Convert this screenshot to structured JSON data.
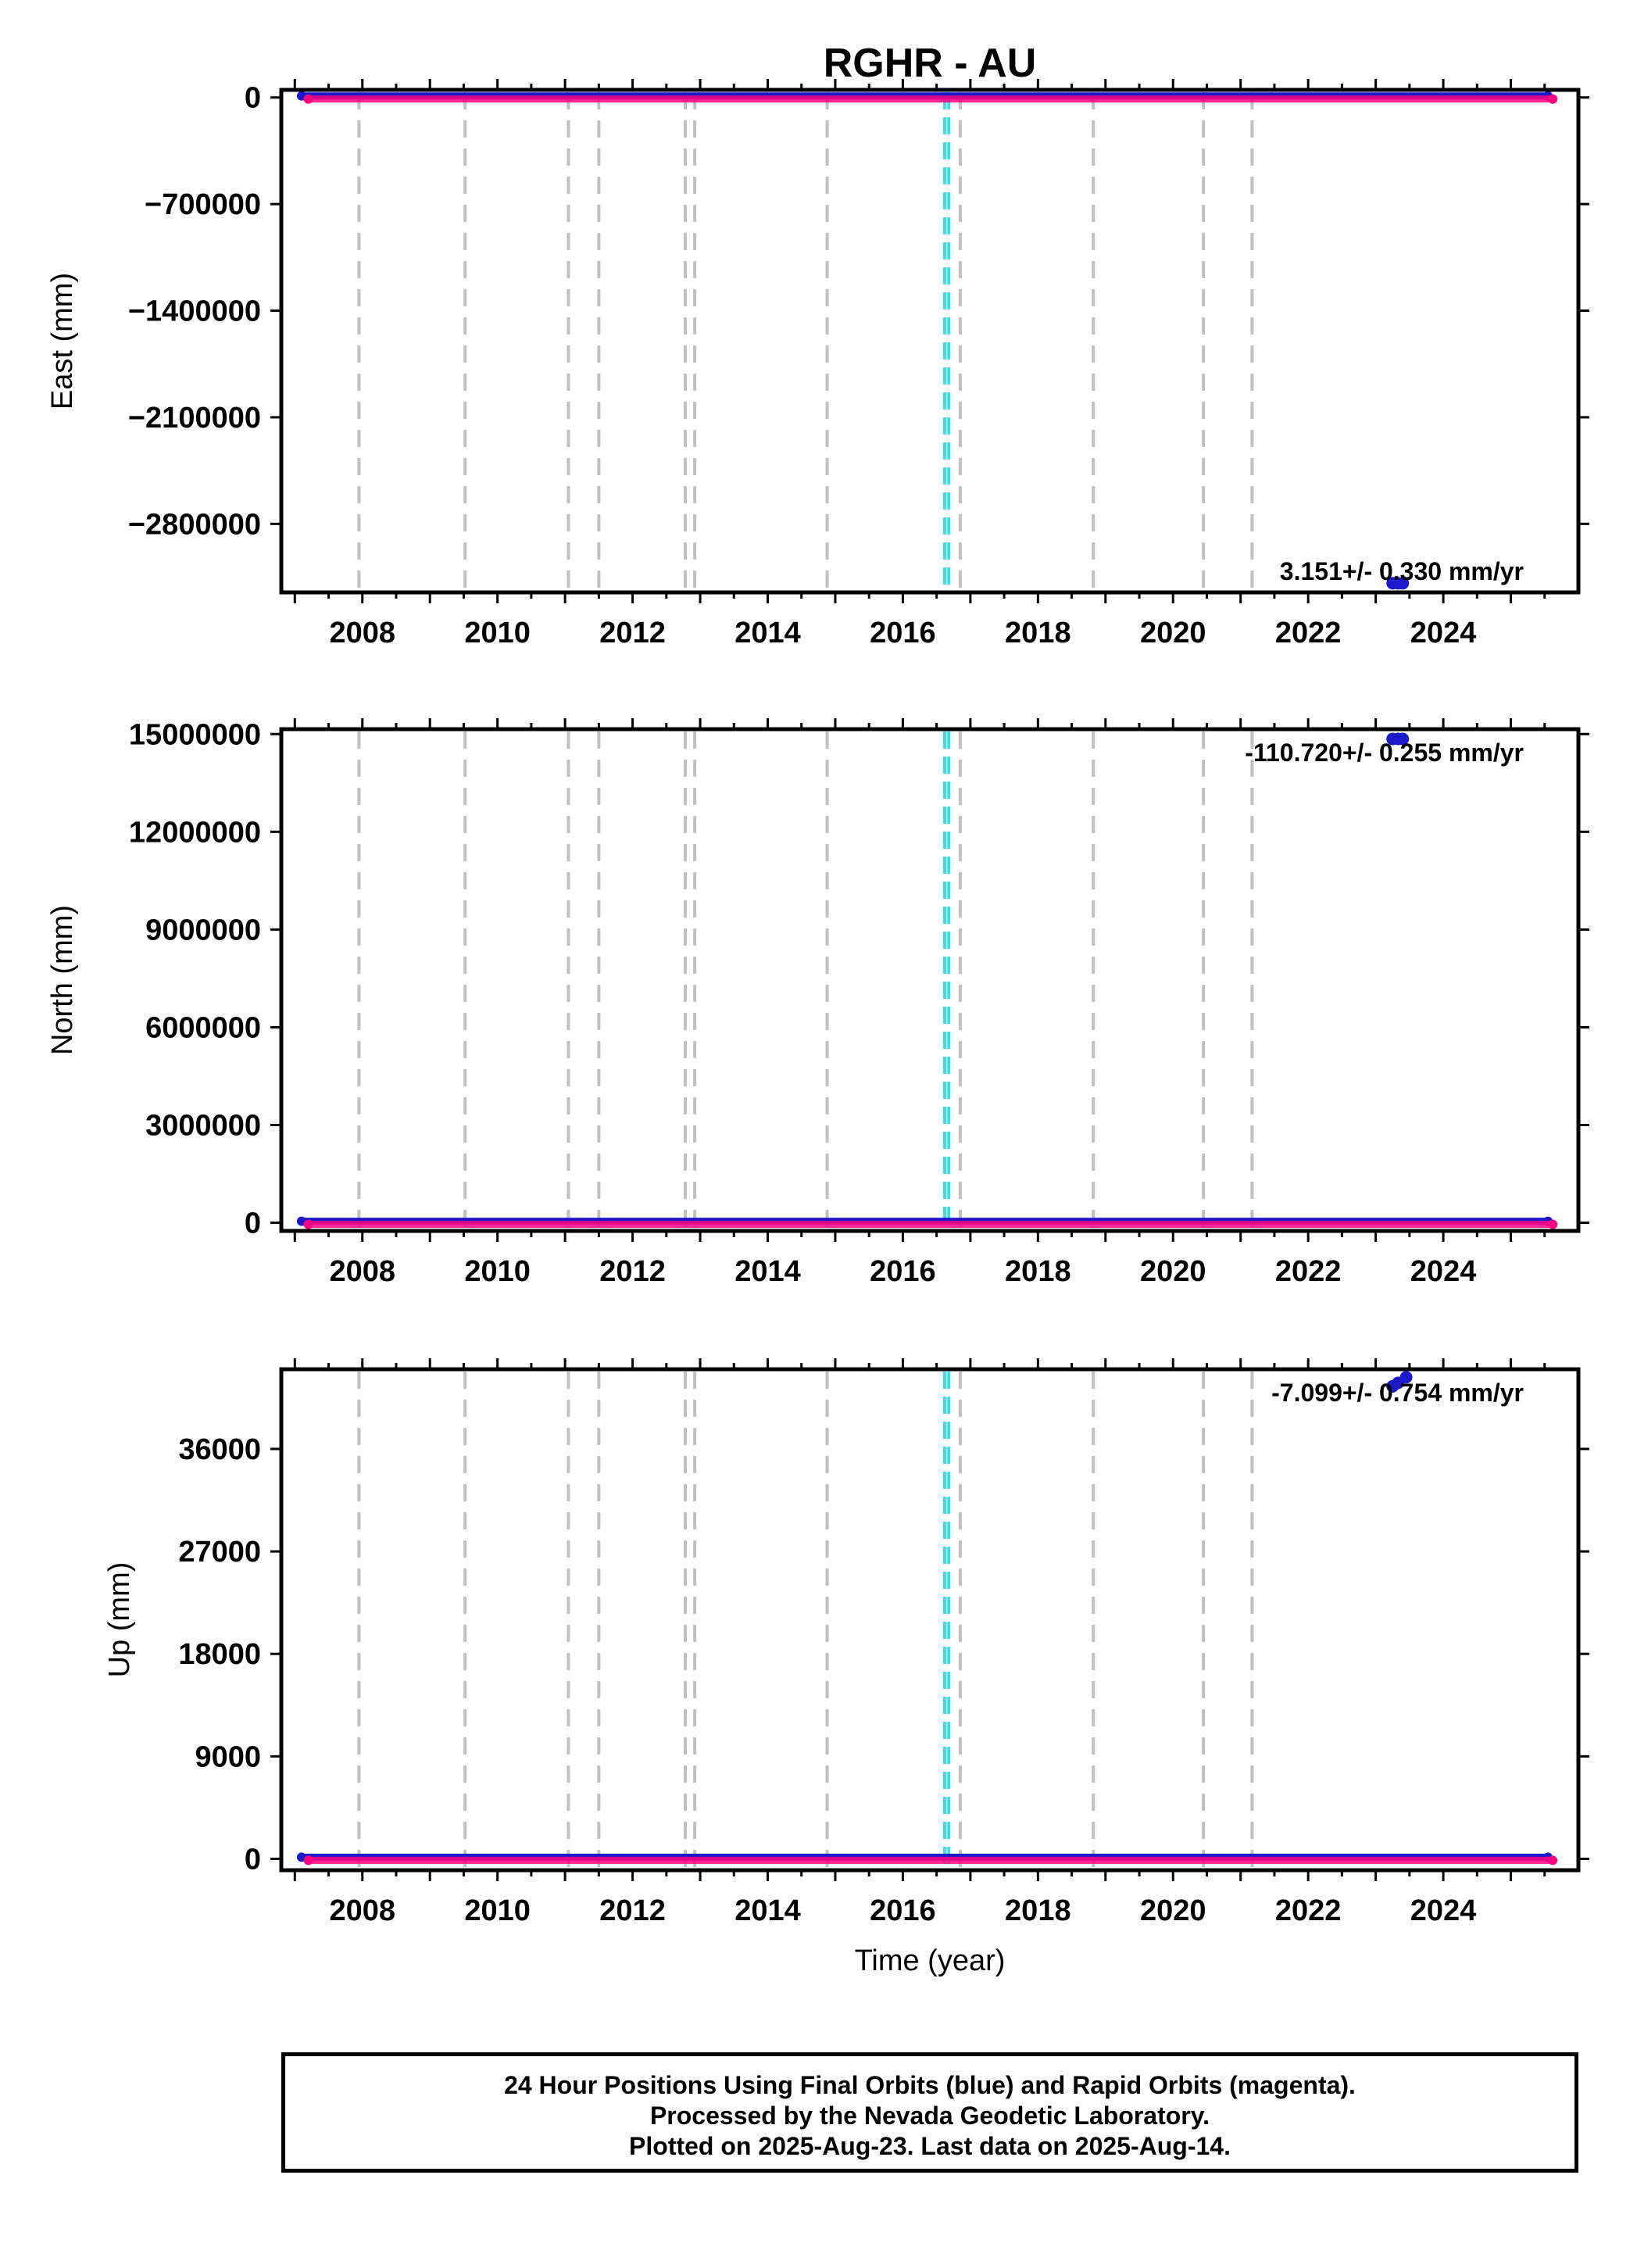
{
  "title": "RGHR - AU",
  "colors": {
    "final": "#1a1acc",
    "rapid": "#ff0080",
    "equipment_change": "#c0c0c0",
    "earthquake": "#35e0e8"
  },
  "chart_data": [
    {
      "type": "scatter",
      "component": "east",
      "ylabel": "East (mm)",
      "xlim": [
        2006.8,
        2026.0
      ],
      "ylim": [
        -3250000,
        50000
      ],
      "yticks": [
        0,
        -700000,
        -1400000,
        -2100000,
        -2800000
      ],
      "ytick_labels": [
        "0",
        "−700000",
        "−1400000",
        "−2100000",
        "−2800000"
      ],
      "xticks": [
        2008,
        2010,
        2012,
        2014,
        2016,
        2018,
        2020,
        2022,
        2024
      ],
      "xtick_labels": [
        "2008",
        "2010",
        "2012",
        "2014",
        "2016",
        "2018",
        "2020",
        "2022",
        "2024"
      ],
      "rate": "3.151+/- 0.330 mm/yr",
      "series": [
        {
          "color": "final",
          "x_range": [
            2007.1,
            2025.55
          ],
          "y": 0,
          "outliers": [
            {
              "x": 2023.25,
              "y": -3190000
            },
            {
              "x": 2023.33,
              "y": -3190000
            },
            {
              "x": 2023.4,
              "y": -3190000
            }
          ]
        },
        {
          "color": "rapid",
          "x_range": [
            2007.2,
            2025.62
          ],
          "y": 0
        }
      ]
    },
    {
      "type": "scatter",
      "component": "north",
      "ylabel": "North (mm)",
      "xlim": [
        2006.8,
        2026.0
      ],
      "ylim": [
        -250000,
        15150000
      ],
      "yticks": [
        15000000,
        12000000,
        9000000,
        6000000,
        3000000,
        0
      ],
      "ytick_labels": [
        "15000000",
        "12000000",
        "9000000",
        "6000000",
        "3000000",
        "0"
      ],
      "xticks": [
        2008,
        2010,
        2012,
        2014,
        2016,
        2018,
        2020,
        2022,
        2024
      ],
      "xtick_labels": [
        "2008",
        "2010",
        "2012",
        "2014",
        "2016",
        "2018",
        "2020",
        "2022",
        "2024"
      ],
      "rate": "-110.720+/- 0.255 mm/yr",
      "series": [
        {
          "color": "final",
          "x_range": [
            2007.1,
            2025.55
          ],
          "y": 0,
          "outliers": [
            {
              "x": 2023.25,
              "y": 14850000
            },
            {
              "x": 2023.33,
              "y": 14850000
            },
            {
              "x": 2023.4,
              "y": 14850000
            }
          ]
        },
        {
          "color": "rapid",
          "x_range": [
            2007.2,
            2025.62
          ],
          "y": 0
        }
      ]
    },
    {
      "type": "scatter",
      "component": "up",
      "ylabel": "Up (mm)",
      "xlim": [
        2006.8,
        2026.0
      ],
      "ylim": [
        -1000,
        43000
      ],
      "yticks": [
        36000,
        27000,
        18000,
        9000,
        0
      ],
      "ytick_labels": [
        "36000",
        "27000",
        "18000",
        "9000",
        "0"
      ],
      "xticks": [
        2008,
        2010,
        2012,
        2014,
        2016,
        2018,
        2020,
        2022,
        2024
      ],
      "xtick_labels": [
        "2008",
        "2010",
        "2012",
        "2014",
        "2016",
        "2018",
        "2020",
        "2022",
        "2024"
      ],
      "xlabel": "Time (year)",
      "rate": "-7.099+/- 0.754 mm/yr",
      "series": [
        {
          "color": "final",
          "x_range": [
            2007.1,
            2025.55
          ],
          "y": 0,
          "outliers": [
            {
              "x": 2023.25,
              "y": 41500
            },
            {
              "x": 2023.33,
              "y": 41800
            },
            {
              "x": 2023.45,
              "y": 42300
            }
          ]
        },
        {
          "color": "rapid",
          "x_range": [
            2007.2,
            2025.62
          ],
          "y": 0
        }
      ]
    }
  ],
  "events": {
    "equipment_changes": [
      2007.95,
      2009.52,
      2011.05,
      2011.5,
      2012.78,
      2012.92,
      2014.88,
      2016.85,
      2018.82,
      2020.45,
      2021.17
    ],
    "earthquakes": [
      2016.62,
      2016.68
    ]
  },
  "footer": {
    "line1": "24 Hour Positions Using Final Orbits (blue) and Rapid Orbits (magenta).",
    "line2": "Processed by the Nevada Geodetic Laboratory.",
    "line3": "Plotted on 2025-Aug-23. Last data on 2025-Aug-14."
  }
}
